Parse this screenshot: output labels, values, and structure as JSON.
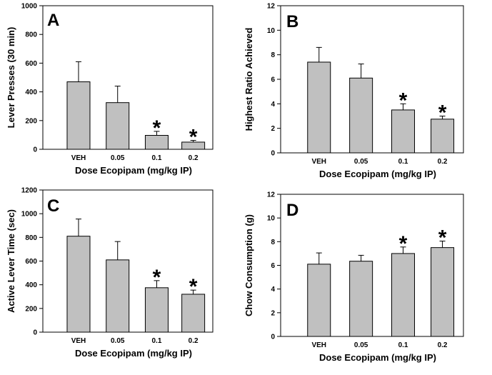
{
  "chart_data": [
    {
      "type": "bar",
      "panel_label": "A",
      "categories": [
        "VEH",
        "0.05",
        "0.1",
        "0.2"
      ],
      "values": [
        470,
        325,
        97,
        50
      ],
      "errors": [
        140,
        115,
        28,
        12
      ],
      "significance": [
        "",
        "",
        "*",
        "*"
      ],
      "xlabel": "Dose Ecopipam (mg/kg IP)",
      "ylabel": "Lever Presses (30 min)",
      "ylim": [
        0,
        1000
      ],
      "yticks": [
        0,
        200,
        400,
        600,
        800,
        1000
      ],
      "bar_color": "#c0c0c0"
    },
    {
      "type": "bar",
      "panel_label": "B",
      "categories": [
        "VEH",
        "0.05",
        "0.1",
        "0.2"
      ],
      "values": [
        7.4,
        6.1,
        3.5,
        2.75
      ],
      "errors": [
        1.2,
        1.15,
        0.5,
        0.25
      ],
      "significance": [
        "",
        "",
        "*",
        "*"
      ],
      "xlabel": "Dose Ecopipam (mg/kg IP)",
      "ylabel": "Highest Ratio Achieved",
      "ylim": [
        0,
        12
      ],
      "yticks": [
        0,
        2,
        4,
        6,
        8,
        10,
        12
      ],
      "bar_color": "#c0c0c0"
    },
    {
      "type": "bar",
      "panel_label": "C",
      "categories": [
        "VEH",
        "0.05",
        "0.1",
        "0.2"
      ],
      "values": [
        810,
        610,
        375,
        320
      ],
      "errors": [
        145,
        155,
        60,
        35
      ],
      "significance": [
        "",
        "",
        "*",
        "*"
      ],
      "xlabel": "Dose Ecopipam (mg/kg IP)",
      "ylabel": "Active Lever Time (sec)",
      "ylim": [
        0,
        1200
      ],
      "yticks": [
        0,
        200,
        400,
        600,
        800,
        1000,
        1200
      ],
      "bar_color": "#c0c0c0"
    },
    {
      "type": "bar",
      "panel_label": "D",
      "categories": [
        "VEH",
        "0.05",
        "0.1",
        "0.2"
      ],
      "values": [
        6.1,
        6.35,
        7.0,
        7.5
      ],
      "errors": [
        0.95,
        0.5,
        0.55,
        0.55
      ],
      "significance": [
        "",
        "",
        "*",
        "*"
      ],
      "xlabel": "Dose Ecopipam (mg/kg IP)",
      "ylabel": "Chow Consumption (g)",
      "ylim": [
        0,
        12
      ],
      "yticks": [
        0,
        2,
        4,
        6,
        8,
        10,
        12
      ],
      "bar_color": "#c0c0c0"
    }
  ]
}
